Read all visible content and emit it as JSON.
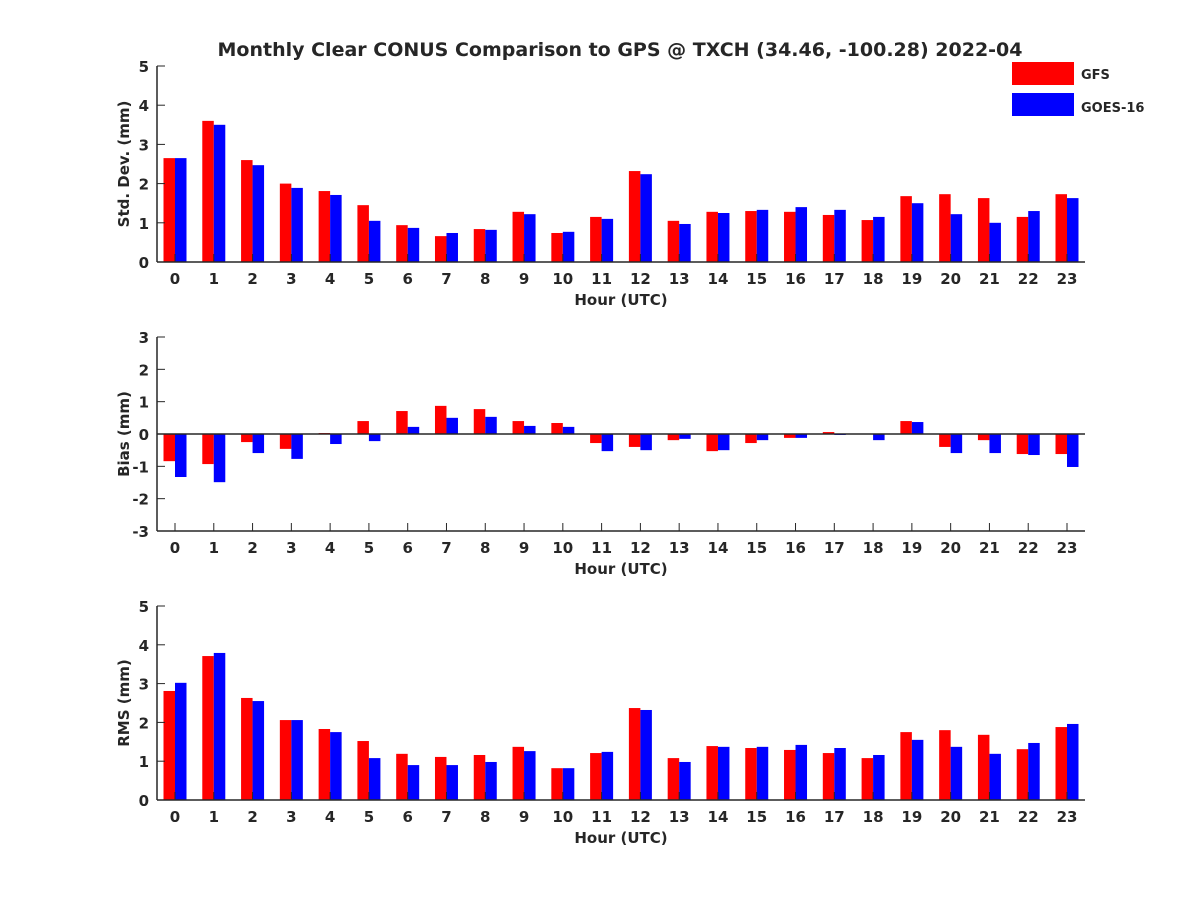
{
  "title": "Monthly Clear CONUS Comparison to GPS @ TXCH (34.46, -100.28) 2022-04",
  "legend": [
    {
      "label": "GFS",
      "color": "#ff0000"
    },
    {
      "label": "GOES-16",
      "color": "#0000ff"
    }
  ],
  "chart_data": [
    {
      "type": "bar",
      "title": "Monthly Clear CONUS Comparison to GPS @ TXCH (34.46, -100.28) 2022-04",
      "xlabel": "Hour (UTC)",
      "ylabel": "Std. Dev. (mm)",
      "ylim": [
        0,
        5
      ],
      "yticks": [
        0,
        1,
        2,
        3,
        4,
        5
      ],
      "legend_position": "top-right",
      "categories": [
        "0",
        "1",
        "2",
        "3",
        "4",
        "5",
        "6",
        "7",
        "8",
        "9",
        "10",
        "11",
        "12",
        "13",
        "14",
        "15",
        "16",
        "17",
        "18",
        "19",
        "20",
        "21",
        "22",
        "23"
      ],
      "series": [
        {
          "name": "GFS",
          "color": "#ff0000",
          "values": [
            2.65,
            3.6,
            2.6,
            2.0,
            1.81,
            1.45,
            0.94,
            0.66,
            0.84,
            1.28,
            0.74,
            1.15,
            2.32,
            1.05,
            1.28,
            1.3,
            1.28,
            1.2,
            1.07,
            1.68,
            1.73,
            1.63,
            1.15,
            1.73
          ]
        },
        {
          "name": "GOES-16",
          "color": "#0000ff",
          "values": [
            2.65,
            3.5,
            2.47,
            1.89,
            1.71,
            1.05,
            0.87,
            0.74,
            0.82,
            1.22,
            0.77,
            1.1,
            2.24,
            0.97,
            1.25,
            1.33,
            1.4,
            1.33,
            1.15,
            1.5,
            1.22,
            1.0,
            1.3,
            1.63
          ]
        }
      ]
    },
    {
      "type": "bar",
      "xlabel": "Hour (UTC)",
      "ylabel": "Bias (mm)",
      "ylim": [
        -3,
        3
      ],
      "yticks": [
        -3,
        -2,
        -1,
        0,
        1,
        2,
        3
      ],
      "categories": [
        "0",
        "1",
        "2",
        "3",
        "4",
        "5",
        "6",
        "7",
        "8",
        "9",
        "10",
        "11",
        "12",
        "13",
        "14",
        "15",
        "16",
        "17",
        "18",
        "19",
        "20",
        "21",
        "22",
        "23"
      ],
      "series": [
        {
          "name": "GFS",
          "color": "#ff0000",
          "values": [
            -0.84,
            -0.93,
            -0.25,
            -0.46,
            0.03,
            0.4,
            0.71,
            0.87,
            0.77,
            0.4,
            0.34,
            -0.28,
            -0.4,
            -0.19,
            -0.53,
            -0.28,
            -0.12,
            0.06,
            0.0,
            0.4,
            -0.4,
            -0.19,
            -0.62,
            -0.62
          ]
        },
        {
          "name": "GOES-16",
          "color": "#0000ff",
          "values": [
            -1.33,
            -1.49,
            -0.59,
            -0.77,
            -0.31,
            -0.22,
            0.22,
            0.5,
            0.53,
            0.25,
            0.22,
            -0.53,
            -0.5,
            -0.15,
            -0.5,
            -0.19,
            -0.12,
            -0.03,
            -0.19,
            0.37,
            -0.59,
            -0.59,
            -0.65,
            -1.02
          ]
        }
      ]
    },
    {
      "type": "bar",
      "xlabel": "Hour (UTC)",
      "ylabel": "RMS (mm)",
      "ylim": [
        0,
        5
      ],
      "yticks": [
        0,
        1,
        2,
        3,
        4,
        5
      ],
      "categories": [
        "0",
        "1",
        "2",
        "3",
        "4",
        "5",
        "6",
        "7",
        "8",
        "9",
        "10",
        "11",
        "12",
        "13",
        "14",
        "15",
        "16",
        "17",
        "18",
        "19",
        "20",
        "21",
        "22",
        "23"
      ],
      "series": [
        {
          "name": "GFS",
          "color": "#ff0000",
          "values": [
            2.81,
            3.71,
            2.63,
            2.06,
            1.83,
            1.52,
            1.19,
            1.11,
            1.16,
            1.37,
            0.82,
            1.21,
            2.37,
            1.08,
            1.39,
            1.34,
            1.29,
            1.21,
            1.08,
            1.75,
            1.8,
            1.68,
            1.31,
            1.88
          ]
        },
        {
          "name": "GOES-16",
          "color": "#0000ff",
          "values": [
            3.02,
            3.79,
            2.55,
            2.06,
            1.75,
            1.08,
            0.9,
            0.9,
            0.98,
            1.26,
            0.82,
            1.24,
            2.32,
            0.98,
            1.37,
            1.37,
            1.42,
            1.34,
            1.16,
            1.55,
            1.37,
            1.19,
            1.47,
            1.96
          ]
        }
      ]
    }
  ]
}
